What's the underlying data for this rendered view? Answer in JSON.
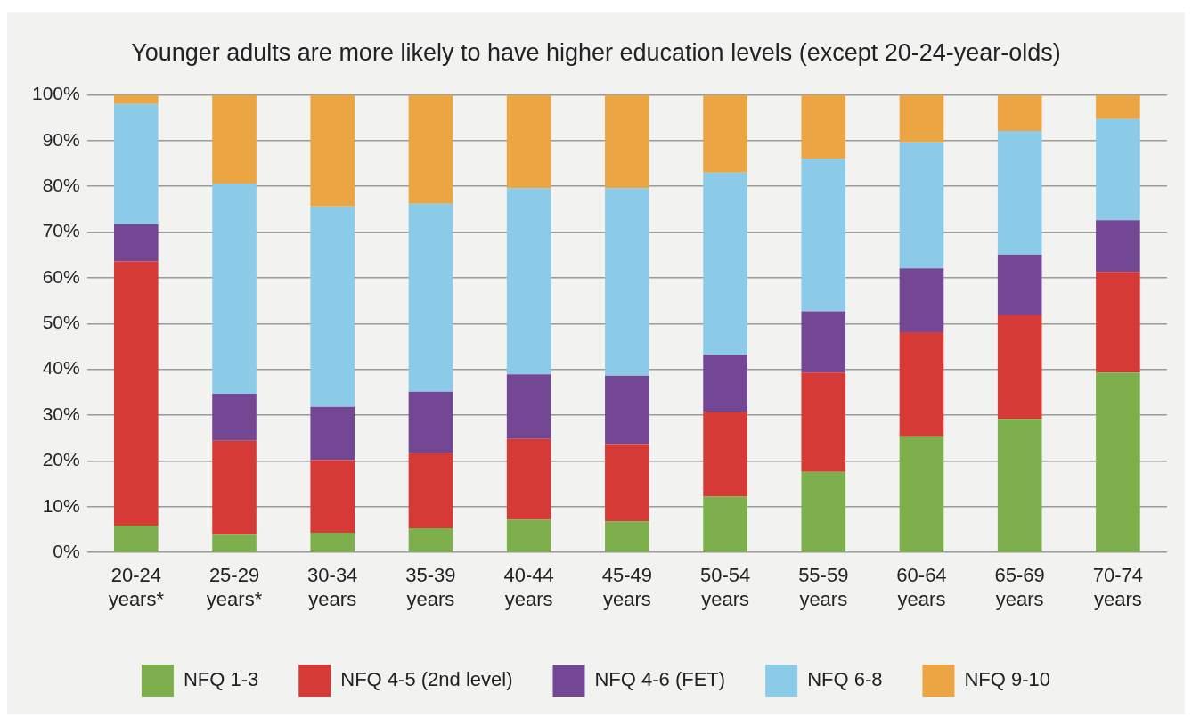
{
  "chart_data": {
    "type": "bar",
    "stacked": true,
    "title": "Younger adults are more likely to have higher education levels (except 20-24-year-olds)",
    "categories": [
      "20-24 years*",
      "25-29 years*",
      "30-34 years",
      "35-39 years",
      "40-44 years",
      "45-49 years",
      "50-54 years",
      "55-59 years",
      "60-64 years",
      "65-69 years",
      "70-74 years"
    ],
    "series": [
      {
        "name": "NFQ 1-3",
        "color": "#7daf4c",
        "values": [
          5.9,
          3.9,
          4.3,
          5.3,
          7.2,
          6.8,
          12.2,
          17.6,
          25.4,
          29.2,
          39.3
        ]
      },
      {
        "name": "NFQ 4-5 (2nd level)",
        "color": "#d63a37",
        "values": [
          57.7,
          20.5,
          15.9,
          16.4,
          17.6,
          16.9,
          18.5,
          21.7,
          22.7,
          22.6,
          22.0
        ]
      },
      {
        "name": "NFQ 4-6 (FET)",
        "color": "#744794",
        "values": [
          8.1,
          10.3,
          11.6,
          13.4,
          14.1,
          14.9,
          12.5,
          13.4,
          14.0,
          13.3,
          11.3
        ]
      },
      {
        "name": "NFQ 6-8",
        "color": "#8ccbe8",
        "values": [
          26.3,
          45.9,
          43.8,
          41.1,
          40.7,
          41.0,
          39.8,
          33.3,
          27.5,
          27.0,
          22.1
        ]
      },
      {
        "name": "NFQ 9-10",
        "color": "#eba543",
        "values": [
          2.0,
          19.4,
          24.4,
          23.8,
          20.4,
          20.4,
          17.0,
          14.0,
          10.4,
          7.9,
          5.3
        ]
      }
    ],
    "ylim": [
      0,
      100
    ],
    "yticks": [
      {
        "value": 0,
        "label": "0%"
      },
      {
        "value": 10,
        "label": "10%"
      },
      {
        "value": 20,
        "label": "20%"
      },
      {
        "value": 30,
        "label": "30%"
      },
      {
        "value": 40,
        "label": "40%"
      },
      {
        "value": 50,
        "label": "50%"
      },
      {
        "value": 60,
        "label": "60%"
      },
      {
        "value": 70,
        "label": "70%"
      },
      {
        "value": 80,
        "label": "80%"
      },
      {
        "value": 90,
        "label": "90%"
      },
      {
        "value": 100,
        "label": "100%"
      }
    ],
    "grid": "y",
    "legend": "bottom"
  }
}
